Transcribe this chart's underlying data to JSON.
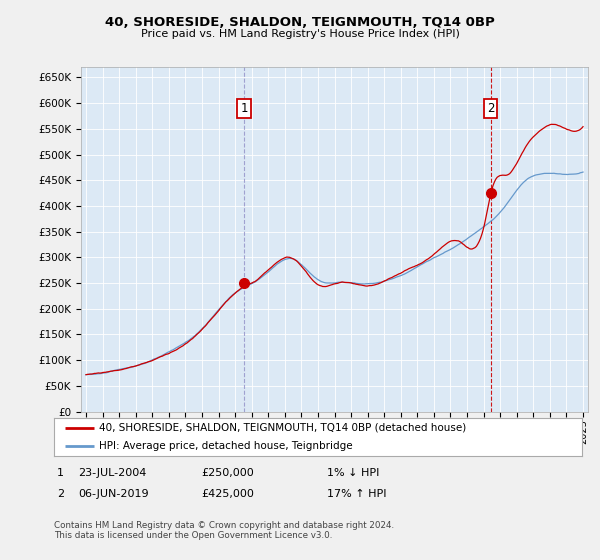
{
  "title": "40, SHORESIDE, SHALDON, TEIGNMOUTH, TQ14 0BP",
  "subtitle": "Price paid vs. HM Land Registry's House Price Index (HPI)",
  "legend_line1": "40, SHORESIDE, SHALDON, TEIGNMOUTH, TQ14 0BP (detached house)",
  "legend_line2": "HPI: Average price, detached house, Teignbridge",
  "annotation1": {
    "num": "1",
    "date": "23-JUL-2004",
    "price": "£250,000",
    "change": "1% ↓ HPI"
  },
  "annotation2": {
    "num": "2",
    "date": "06-JUN-2019",
    "price": "£425,000",
    "change": "17% ↑ HPI"
  },
  "footnote1": "Contains HM Land Registry data © Crown copyright and database right 2024.",
  "footnote2": "This data is licensed under the Open Government Licence v3.0.",
  "ylim": [
    0,
    670000
  ],
  "yticks": [
    0,
    50000,
    100000,
    150000,
    200000,
    250000,
    300000,
    350000,
    400000,
    450000,
    500000,
    550000,
    600000,
    650000
  ],
  "background_color": "#f0f0f0",
  "plot_bg_color": "#dce9f5",
  "red_line_color": "#cc0000",
  "blue_line_color": "#6699cc",
  "vline1_color": "#9999cc",
  "vline2_color": "#cc0000",
  "grid_color": "#ffffff",
  "purchase1_x": 2004.55,
  "purchase1_y": 250000,
  "purchase2_x": 2019.43,
  "purchase2_y": 425000,
  "xmin": 1994.7,
  "xmax": 2025.3
}
